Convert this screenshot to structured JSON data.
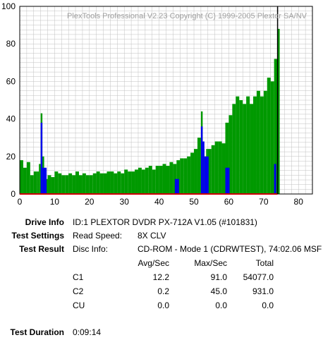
{
  "chart_data": {
    "type": "bar",
    "title": "PlexTools Professional V2.23 Copyright (C) 1999-2005 Plextor SA/NV",
    "xlabel": "",
    "ylabel": "",
    "xlim": [
      0,
      84
    ],
    "ylim": [
      0,
      100
    ],
    "xticks": [
      0,
      10,
      20,
      30,
      40,
      50,
      60,
      70,
      80
    ],
    "yticks": [
      0,
      20,
      40,
      60,
      80,
      100
    ],
    "grid": true,
    "colors": {
      "c1": "#009900",
      "c2": "#0000ee",
      "marker": "#000000",
      "axis": "#cc0000",
      "grid": "#c0c0c0"
    },
    "marker_x": 74.0,
    "series": [
      {
        "key": "c1",
        "x": [
          0,
          1,
          2,
          3,
          4,
          5,
          5.5,
          6,
          6.5,
          7,
          8,
          9,
          10,
          11,
          12,
          13,
          14,
          15,
          16,
          17,
          18,
          19,
          20,
          21,
          22,
          23,
          24,
          25,
          26,
          27,
          28,
          29,
          30,
          31,
          32,
          33,
          34,
          35,
          36,
          37,
          38,
          39,
          40,
          41,
          42,
          43,
          44,
          45,
          46,
          47,
          48,
          49,
          50,
          51,
          52,
          52.5,
          53,
          53.5,
          54,
          55,
          56,
          57,
          58,
          59,
          60,
          61,
          62,
          63,
          64,
          65,
          66,
          67,
          68,
          69,
          70,
          71,
          72,
          73,
          74
        ],
        "values": [
          18,
          14,
          17,
          10,
          12,
          12,
          16,
          43,
          20,
          8,
          10,
          9,
          12,
          11,
          10,
          10,
          11,
          10,
          12,
          10,
          11,
          10,
          10,
          11,
          12,
          11,
          11,
          12,
          12,
          11,
          12,
          11,
          13,
          12,
          12,
          13,
          14,
          13,
          14,
          15,
          13,
          15,
          15,
          16,
          15,
          17,
          16,
          18,
          19,
          19,
          20,
          22,
          24,
          30,
          44,
          24,
          20,
          24,
          24,
          26,
          28,
          28,
          27,
          38,
          42,
          48,
          52,
          50,
          48,
          52,
          48,
          52,
          55,
          52,
          55,
          62,
          60,
          72,
          88
        ]
      },
      {
        "key": "c2",
        "x": [
          6,
          6.5,
          44.5,
          52,
          52.5,
          53,
          59,
          73
        ],
        "values": [
          38,
          14,
          8,
          36,
          28,
          20,
          14,
          16
        ]
      }
    ]
  },
  "info": {
    "drive_info_label": "Drive Info",
    "drive_info_value": "ID:1 PLEXTOR DVDR PX-712A V1.05 (#101831)",
    "test_settings_label": "Test Settings",
    "read_speed_label": "Read Speed:",
    "read_speed_value": "8X CLV",
    "test_result_label": "Test Result",
    "disc_info_label": "Disc Info:",
    "disc_info_value": "CD-ROM - Mode 1 (CDRWTEST), 74:02.06 MSF",
    "col_avg": "Avg/Sec",
    "col_max": "Max/Sec",
    "col_total": "Total",
    "rows": [
      {
        "name": "C1",
        "avg": "12.2",
        "max": "91.0",
        "total": "54077.0"
      },
      {
        "name": "C2",
        "avg": "0.2",
        "max": "45.0",
        "total": "931.0"
      },
      {
        "name": "CU",
        "avg": "0.0",
        "max": "0.0",
        "total": "0.0"
      }
    ],
    "test_duration_label": "Test Duration",
    "test_duration_value": "0:09:14"
  }
}
